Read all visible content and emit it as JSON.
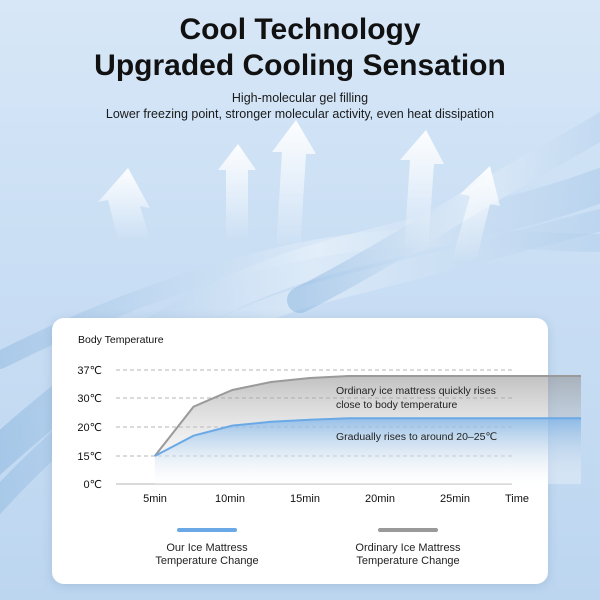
{
  "header": {
    "title_line1": "Cool Technology",
    "title_line2": "Upgraded Cooling Sensation",
    "subtitle_line1": "High-molecular gel filling",
    "subtitle_line2": "Lower freezing point, stronger molecular activity, even heat dissipation"
  },
  "colors": {
    "our_series": "#6aa9e6",
    "ordinary_series": "#9a9a9a",
    "background": "#c9def4"
  },
  "chart_data": {
    "type": "area",
    "ylabel": "Body Temperature",
    "xlabel": "Time",
    "x_ticks": [
      "5min",
      "10min",
      "15min",
      "20min",
      "25min"
    ],
    "y_ticks": [
      "37℃",
      "30℃",
      "20℃",
      "15℃",
      "0℃"
    ],
    "y_tick_values": [
      37,
      30,
      20,
      15,
      0
    ],
    "grid": true,
    "series": [
      {
        "name": "Our Ice Mattress\nTemperature Change",
        "x": [
          2.5,
          5,
          7.5,
          10,
          12.5,
          15,
          20,
          25,
          30
        ],
        "y": [
          15,
          18.5,
          20.5,
          21.8,
          22.5,
          23,
          23,
          23,
          23
        ]
      },
      {
        "name": "Ordinary Ice Mattress\nTemperature Change",
        "x": [
          2.5,
          5,
          7.5,
          10,
          12.5,
          15,
          20,
          25,
          30
        ],
        "y": [
          15,
          27,
          32,
          34,
          35,
          35.5,
          35.5,
          35.5,
          35.5
        ]
      }
    ],
    "annotations": [
      "Ordinary ice mattress quickly rises\nclose to body temperature",
      "Gradually rises to around 20–25℃"
    ],
    "legend_position": "bottom"
  }
}
